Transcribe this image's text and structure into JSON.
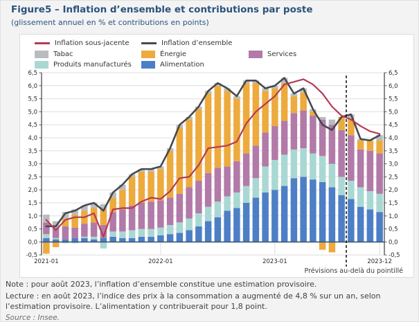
{
  "figure": {
    "title": "Figure5 – Inflation d’ensemble et contributions par poste",
    "subtitle": "(glissement annuel en % et contributions en points)",
    "note": "Note : pour août 2023, l’inflation d’ensemble constitue une estimation provisoire.",
    "lecture": "Lecture : en août 2023, l’indice des prix à la consommation a augmenté de 4,8 % sur un an, selon l’estimation provisoire. L’alimentation y contribuerait pour 1,8 point.",
    "source": "Source : Insee.",
    "forecast_label": "Prévisions au-delà du pointillé"
  },
  "colors": {
    "title_blue": "#2b537c",
    "alimentation": "#4d7fc6",
    "produits_manufactures": "#a9d8d3",
    "services": "#b27aa8",
    "energie": "#edaa3d",
    "tabac": "#b9bcbe",
    "ensemble_line": "#45494e",
    "sous_jacente_line": "#b43b53",
    "zero_line": "#3d566e",
    "grid": "#dedede",
    "spine": "#55595e"
  },
  "legend": [
    {
      "label": "Inflation sous-jacente",
      "type": "line",
      "color": "#b43b53",
      "row": 0,
      "col": 0
    },
    {
      "label": "Inflation d’ensemble",
      "type": "line",
      "color": "#45494e",
      "row": 0,
      "col": 1
    },
    {
      "label": "Tabac",
      "type": "box",
      "color": "#b9bcbe",
      "row": 1,
      "col": 0
    },
    {
      "label": "Énergie",
      "type": "box",
      "color": "#edaa3d",
      "row": 1,
      "col": 1
    },
    {
      "label": "Services",
      "type": "box",
      "color": "#b27aa8",
      "row": 1,
      "col": 2
    },
    {
      "label": "Produits manufacturés",
      "type": "box",
      "color": "#a9d8d3",
      "row": 2,
      "col": 0
    },
    {
      "label": "Alimentation",
      "type": "box",
      "color": "#4d7fc6",
      "row": 2,
      "col": 1
    }
  ],
  "chart_data": {
    "type": "bar",
    "subtype": "stacked-bars-with-lines",
    "title": "Inflation d’ensemble et contributions par poste",
    "xlabel": "",
    "ylabel": "glissement annuel en % et contributions en points",
    "ylim": [
      -0.5,
      6.5
    ],
    "ytick_step": 0.5,
    "grid": true,
    "legend_position": "top",
    "decimal_separator": ",",
    "xticks": [
      "2021-01",
      "2022-01",
      "2023-01",
      "2023-12"
    ],
    "forecast_start_category": "2023-09",
    "forecast_note": "Prévisions au-delà du pointillé",
    "categories": [
      "2021-01",
      "2021-02",
      "2021-03",
      "2021-04",
      "2021-05",
      "2021-06",
      "2021-07",
      "2021-08",
      "2021-09",
      "2021-10",
      "2021-11",
      "2021-12",
      "2022-01",
      "2022-02",
      "2022-03",
      "2022-04",
      "2022-05",
      "2022-06",
      "2022-07",
      "2022-08",
      "2022-09",
      "2022-10",
      "2022-11",
      "2022-12",
      "2023-01",
      "2023-02",
      "2023-03",
      "2023-04",
      "2023-05",
      "2023-06",
      "2023-07",
      "2023-08",
      "2023-09",
      "2023-10",
      "2023-11",
      "2023-12"
    ],
    "series": [
      {
        "name": "Alimentation",
        "color": "#4d7fc6",
        "values": [
          0.15,
          0.1,
          0.1,
          0.15,
          0.15,
          0.1,
          0.15,
          0.2,
          0.15,
          0.15,
          0.2,
          0.2,
          0.25,
          0.3,
          0.35,
          0.45,
          0.6,
          0.8,
          0.95,
          1.2,
          1.3,
          1.5,
          1.7,
          1.9,
          2.0,
          2.15,
          2.45,
          2.5,
          2.4,
          2.3,
          2.1,
          1.8,
          1.65,
          1.35,
          1.25,
          1.15
        ]
      },
      {
        "name": "Produits manufacturés",
        "color": "#a9d8d3",
        "values": [
          0.15,
          0.05,
          -0.05,
          -0.05,
          0.05,
          0.1,
          -0.25,
          0.2,
          0.25,
          0.3,
          0.3,
          0.3,
          0.3,
          0.35,
          0.4,
          0.45,
          0.5,
          0.55,
          0.6,
          0.55,
          0.6,
          0.65,
          0.75,
          1.0,
          1.15,
          1.2,
          1.1,
          1.1,
          1.0,
          1.0,
          0.9,
          0.7,
          0.7,
          0.75,
          0.7,
          0.7
        ]
      },
      {
        "name": "Services",
        "color": "#b27aa8",
        "values": [
          0.45,
          0.4,
          0.5,
          0.4,
          0.5,
          0.55,
          0.5,
          0.75,
          0.85,
          0.95,
          1.0,
          1.05,
          1.05,
          1.05,
          1.1,
          1.2,
          1.25,
          1.3,
          1.3,
          1.15,
          1.2,
          1.25,
          1.25,
          1.3,
          1.3,
          1.3,
          1.4,
          1.45,
          1.45,
          1.4,
          1.5,
          1.8,
          1.75,
          1.45,
          1.55,
          1.55
        ]
      },
      {
        "name": "Énergie",
        "color": "#edaa3d",
        "values": [
          -0.45,
          -0.2,
          0.3,
          0.5,
          0.5,
          0.55,
          0.6,
          0.55,
          0.75,
          1.1,
          1.2,
          1.15,
          1.2,
          1.8,
          2.55,
          2.6,
          2.75,
          3.05,
          3.15,
          2.9,
          2.4,
          2.7,
          2.4,
          1.6,
          1.45,
          1.45,
          0.65,
          0.7,
          0.15,
          -0.3,
          -0.4,
          0.5,
          0.6,
          0.35,
          0.4,
          0.5
        ]
      },
      {
        "name": "Tabac",
        "color": "#b9bcbe",
        "values": [
          0.3,
          0.25,
          0.25,
          0.2,
          0.2,
          0.2,
          0.2,
          0.2,
          0.2,
          0.1,
          0.1,
          0.1,
          0.1,
          0.1,
          0.1,
          0.1,
          0.1,
          0.1,
          0.1,
          0.1,
          0.1,
          0.1,
          0.1,
          0.1,
          0.1,
          0.2,
          0.1,
          0.15,
          0.1,
          0.1,
          0.2,
          0.0,
          0.2,
          0.05,
          0.0,
          0.2
        ]
      }
    ],
    "lines": [
      {
        "name": "Inflation d’ensemble",
        "color": "#45494e",
        "width": 2.6,
        "values": [
          0.6,
          0.6,
          1.1,
          1.2,
          1.4,
          1.5,
          1.2,
          1.9,
          2.2,
          2.6,
          2.8,
          2.8,
          2.9,
          3.6,
          4.5,
          4.8,
          5.2,
          5.8,
          6.1,
          5.9,
          5.6,
          6.2,
          6.2,
          5.9,
          6.0,
          6.3,
          5.7,
          5.9,
          5.1,
          4.5,
          4.3,
          4.8,
          4.9,
          3.95,
          3.9,
          4.1
        ]
      },
      {
        "name": "Inflation sous-jacente",
        "color": "#b43b53",
        "width": 2.2,
        "values": [
          0.85,
          0.45,
          0.85,
          0.95,
          0.95,
          1.1,
          0.2,
          1.25,
          1.3,
          1.3,
          1.55,
          1.7,
          1.65,
          1.95,
          2.45,
          2.5,
          2.95,
          3.6,
          3.65,
          3.7,
          3.85,
          4.55,
          5.0,
          5.3,
          5.6,
          6.05,
          6.15,
          6.25,
          6.05,
          5.7,
          5.2,
          4.85,
          4.7,
          4.45,
          4.25,
          4.15
        ]
      }
    ]
  }
}
